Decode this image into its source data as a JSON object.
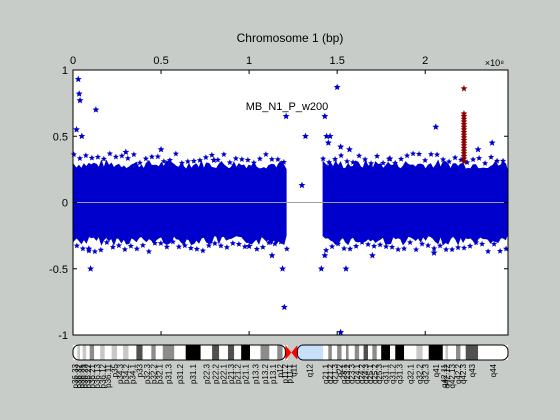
{
  "chart_data": {
    "type": "scatter",
    "title": "MB_N1_P_w200",
    "xlabel": "Chromosome 1 (bp)",
    "ylabel": "",
    "x_axis_multiplier": "×10⁸",
    "xlim": [
      0,
      2.47
    ],
    "ylim": [
      -1,
      1
    ],
    "x_ticks": [
      0,
      0.5,
      1,
      1.5,
      2
    ],
    "x_tick_labels": [
      "0",
      "0.5",
      "1",
      "1.5",
      "2"
    ],
    "y_ticks": [
      -1,
      -0.5,
      0,
      0.5,
      1
    ],
    "y_tick_labels": [
      "-1",
      "-0.5",
      "0",
      "0.5",
      "1"
    ],
    "baseline_y": 0,
    "grid": false,
    "legend": "none",
    "band": {
      "ymin": -0.25,
      "ymax": 0.25,
      "segments": [
        [
          0.005,
          1.21
        ],
        [
          1.42,
          2.465
        ]
      ]
    },
    "series": [
      {
        "color": "#0000cc",
        "points": [
          [
            0.03,
            0.93
          ],
          [
            0.035,
            0.82
          ],
          [
            0.04,
            0.77
          ],
          [
            0.02,
            0.55
          ],
          [
            0.05,
            0.5
          ],
          [
            0.13,
            0.7
          ],
          [
            0.1,
            -0.5
          ],
          [
            0.09,
            -0.35
          ],
          [
            0.3,
            0.38
          ],
          [
            0.5,
            0.4
          ],
          [
            1.21,
            0.65
          ],
          [
            1.2,
            -0.79
          ],
          [
            1.19,
            -0.5
          ],
          [
            1.13,
            -0.4
          ],
          [
            1.3,
            0.13
          ],
          [
            1.43,
            0.65
          ],
          [
            1.44,
            0.5
          ],
          [
            1.45,
            0.45
          ],
          [
            1.46,
            0.5
          ],
          [
            1.43,
            -0.4
          ],
          [
            1.41,
            -0.5
          ],
          [
            1.5,
            0.87
          ],
          [
            1.52,
            0.42
          ],
          [
            1.52,
            -0.98
          ],
          [
            1.55,
            -0.5
          ],
          [
            1.57,
            0.4
          ],
          [
            1.7,
            -0.4
          ],
          [
            2.06,
            0.57
          ],
          [
            2.05,
            -0.38
          ],
          [
            2.3,
            0.4
          ],
          [
            2.38,
            0.45
          ],
          [
            1.32,
            0.5
          ],
          [
            0.8,
            0.32
          ],
          [
            1.0,
            -0.33
          ],
          [
            1.8,
            0.33
          ]
        ]
      },
      {
        "color": "#8b0000",
        "points": [
          [
            2.22,
            0.86
          ],
          [
            2.22,
            0.67
          ],
          [
            2.22,
            0.65
          ],
          [
            2.22,
            0.63
          ],
          [
            2.22,
            0.61
          ],
          [
            2.22,
            0.59
          ],
          [
            2.22,
            0.57
          ],
          [
            2.22,
            0.55
          ],
          [
            2.22,
            0.53
          ],
          [
            2.22,
            0.51
          ],
          [
            2.22,
            0.49
          ],
          [
            2.22,
            0.47
          ],
          [
            2.22,
            0.45
          ],
          [
            2.22,
            0.43
          ],
          [
            2.22,
            0.41
          ],
          [
            2.22,
            0.39
          ],
          [
            2.22,
            0.37
          ],
          [
            2.22,
            0.35
          ],
          [
            2.22,
            0.33
          ],
          [
            2.22,
            0.31
          ]
        ]
      }
    ],
    "ideogram": {
      "centromere_x": 1.24,
      "heterochromatin": [
        1.25,
        1.42
      ],
      "bands": [
        {
          "name": "p36.33",
          "start": 0.0,
          "end": 0.025,
          "stain": "gneg"
        },
        {
          "name": "p36.32",
          "start": 0.025,
          "end": 0.04,
          "stain": "gpos25"
        },
        {
          "name": "p36.31",
          "start": 0.04,
          "end": 0.055,
          "stain": "gneg"
        },
        {
          "name": "p36.23",
          "start": 0.055,
          "end": 0.075,
          "stain": "gpos25"
        },
        {
          "name": "p36.22",
          "start": 0.075,
          "end": 0.095,
          "stain": "gneg"
        },
        {
          "name": "p36.21",
          "start": 0.095,
          "end": 0.12,
          "stain": "gpos50"
        },
        {
          "name": "p36.13",
          "start": 0.12,
          "end": 0.155,
          "stain": "gneg"
        },
        {
          "name": "p36.12",
          "start": 0.155,
          "end": 0.18,
          "stain": "gpos25"
        },
        {
          "name": "p36.11",
          "start": 0.18,
          "end": 0.22,
          "stain": "gneg"
        },
        {
          "name": "p35",
          "start": 0.22,
          "end": 0.25,
          "stain": "gpos25"
        },
        {
          "name": "p34.3",
          "start": 0.25,
          "end": 0.285,
          "stain": "gneg"
        },
        {
          "name": "p34.2",
          "start": 0.285,
          "end": 0.315,
          "stain": "gpos25"
        },
        {
          "name": "p34.1",
          "start": 0.315,
          "end": 0.36,
          "stain": "gneg"
        },
        {
          "name": "p33",
          "start": 0.36,
          "end": 0.395,
          "stain": "gpos75"
        },
        {
          "name": "p32.3",
          "start": 0.395,
          "end": 0.445,
          "stain": "gneg"
        },
        {
          "name": "p32.2",
          "start": 0.445,
          "end": 0.47,
          "stain": "gpos50"
        },
        {
          "name": "p32.1",
          "start": 0.47,
          "end": 0.51,
          "stain": "gneg"
        },
        {
          "name": "p31.3",
          "start": 0.51,
          "end": 0.575,
          "stain": "gpos50"
        },
        {
          "name": "p31.2",
          "start": 0.575,
          "end": 0.64,
          "stain": "gneg"
        },
        {
          "name": "p31.1",
          "start": 0.64,
          "end": 0.725,
          "stain": "gpos100"
        },
        {
          "name": "p22.3",
          "start": 0.725,
          "end": 0.79,
          "stain": "gneg"
        },
        {
          "name": "p22.2",
          "start": 0.79,
          "end": 0.83,
          "stain": "gpos75"
        },
        {
          "name": "p22.1",
          "start": 0.83,
          "end": 0.88,
          "stain": "gneg"
        },
        {
          "name": "p21.3",
          "start": 0.88,
          "end": 0.915,
          "stain": "gpos75"
        },
        {
          "name": "p21.2",
          "start": 0.915,
          "end": 0.955,
          "stain": "gneg"
        },
        {
          "name": "p21.1",
          "start": 0.955,
          "end": 1.005,
          "stain": "gpos100"
        },
        {
          "name": "p13.3",
          "start": 1.005,
          "end": 1.065,
          "stain": "gneg"
        },
        {
          "name": "p13.2",
          "start": 1.065,
          "end": 1.115,
          "stain": "gpos50"
        },
        {
          "name": "p13.1",
          "start": 1.115,
          "end": 1.16,
          "stain": "gneg"
        },
        {
          "name": "p12",
          "start": 1.16,
          "end": 1.19,
          "stain": "gpos50"
        },
        {
          "name": "p11.2",
          "start": 1.19,
          "end": 1.22,
          "stain": "gneg"
        },
        {
          "name": "p11.1",
          "start": 1.22,
          "end": 1.24,
          "stain": "acen"
        },
        {
          "name": "q11",
          "start": 1.24,
          "end": 1.265,
          "stain": "acen"
        },
        {
          "name": "q12",
          "start": 1.265,
          "end": 1.42,
          "stain": "gvar"
        },
        {
          "name": "q21.1",
          "start": 1.42,
          "end": 1.45,
          "stain": "gneg"
        },
        {
          "name": "q21.2",
          "start": 1.45,
          "end": 1.47,
          "stain": "gpos50"
        },
        {
          "name": "q21.3",
          "start": 1.47,
          "end": 1.5,
          "stain": "gneg"
        },
        {
          "name": "q22",
          "start": 1.5,
          "end": 1.525,
          "stain": "gpos50"
        },
        {
          "name": "q23.1",
          "start": 1.525,
          "end": 1.55,
          "stain": "gneg"
        },
        {
          "name": "q23.2",
          "start": 1.55,
          "end": 1.565,
          "stain": "gpos50"
        },
        {
          "name": "q23.3",
          "start": 1.565,
          "end": 1.6,
          "stain": "gneg"
        },
        {
          "name": "q24.1",
          "start": 1.6,
          "end": 1.625,
          "stain": "gpos50"
        },
        {
          "name": "q24.2",
          "start": 1.625,
          "end": 1.65,
          "stain": "gneg"
        },
        {
          "name": "q24.3",
          "start": 1.65,
          "end": 1.675,
          "stain": "gpos75"
        },
        {
          "name": "q25.1",
          "start": 1.675,
          "end": 1.7,
          "stain": "gneg"
        },
        {
          "name": "q25.2",
          "start": 1.7,
          "end": 1.725,
          "stain": "gpos50"
        },
        {
          "name": "q25.3",
          "start": 1.725,
          "end": 1.75,
          "stain": "gneg"
        },
        {
          "name": "q31.1",
          "start": 1.75,
          "end": 1.8,
          "stain": "gpos100"
        },
        {
          "name": "q31.2",
          "start": 1.8,
          "end": 1.83,
          "stain": "gneg"
        },
        {
          "name": "q31.3",
          "start": 1.83,
          "end": 1.88,
          "stain": "gpos100"
        },
        {
          "name": "q32.1",
          "start": 1.88,
          "end": 1.95,
          "stain": "gneg"
        },
        {
          "name": "q32.2",
          "start": 1.95,
          "end": 1.985,
          "stain": "gpos25"
        },
        {
          "name": "q32.3",
          "start": 1.985,
          "end": 2.02,
          "stain": "gneg"
        },
        {
          "name": "q41",
          "start": 2.02,
          "end": 2.1,
          "stain": "gpos100"
        },
        {
          "name": "q42.11",
          "start": 2.1,
          "end": 2.115,
          "stain": "gneg"
        },
        {
          "name": "q42.12",
          "start": 2.115,
          "end": 2.13,
          "stain": "gpos25"
        },
        {
          "name": "q42.13",
          "start": 2.13,
          "end": 2.175,
          "stain": "gneg"
        },
        {
          "name": "q42.2",
          "start": 2.175,
          "end": 2.2,
          "stain": "gpos50"
        },
        {
          "name": "q42.3",
          "start": 2.2,
          "end": 2.23,
          "stain": "gneg"
        },
        {
          "name": "q43",
          "start": 2.23,
          "end": 2.3,
          "stain": "gpos75"
        },
        {
          "name": "q44",
          "start": 2.3,
          "end": 2.47,
          "stain": "gneg"
        }
      ],
      "printed_labels": [
        {
          "text": "p36.33",
          "x": 0.012
        },
        {
          "text": "p36.32",
          "x": 0.032
        },
        {
          "text": "p36.31",
          "x": 0.047
        },
        {
          "text": "p36.23",
          "x": 0.065
        },
        {
          "text": "p36.22",
          "x": 0.085
        },
        {
          "text": "p36.21",
          "x": 0.107
        },
        {
          "text": "p36.13",
          "x": 0.137
        },
        {
          "text": "p36.12",
          "x": 0.167
        },
        {
          "text": "p36.11",
          "x": 0.2
        },
        {
          "text": "p35",
          "x": 0.235
        },
        {
          "text": "p34.3",
          "x": 0.267
        },
        {
          "text": "p34.2",
          "x": 0.3
        },
        {
          "text": "p34.1",
          "x": 0.337
        },
        {
          "text": "p33",
          "x": 0.377
        },
        {
          "text": "p32.3",
          "x": 0.42
        },
        {
          "text": "p32.2",
          "x": 0.457
        },
        {
          "text": "p32.1",
          "x": 0.49
        },
        {
          "text": "p31.3",
          "x": 0.542
        },
        {
          "text": "p31.2",
          "x": 0.607
        },
        {
          "text": "p31.1",
          "x": 0.682
        },
        {
          "text": "p22.3",
          "x": 0.757
        },
        {
          "text": "p22.2",
          "x": 0.81
        },
        {
          "text": "p22.1",
          "x": 0.855
        },
        {
          "text": "p21.3",
          "x": 0.897
        },
        {
          "text": "p21.2",
          "x": 0.935
        },
        {
          "text": "p21.1",
          "x": 0.98
        },
        {
          "text": "p13.3",
          "x": 1.035
        },
        {
          "text": "p13.2",
          "x": 1.09
        },
        {
          "text": "p13.1",
          "x": 1.137
        },
        {
          "text": "p12",
          "x": 1.175
        },
        {
          "text": "p11.2",
          "x": 1.205
        },
        {
          "text": "p11.1",
          "x": 1.23
        },
        {
          "text": "q11",
          "x": 1.252
        },
        {
          "text": "q12",
          "x": 1.342
        },
        {
          "text": "q21.1",
          "x": 1.435
        },
        {
          "text": "q21.2",
          "x": 1.46
        },
        {
          "text": "q21.3",
          "x": 1.485
        },
        {
          "text": "q22",
          "x": 1.512
        },
        {
          "text": "q23.1",
          "x": 1.537
        },
        {
          "text": "q23.2",
          "x": 1.557
        },
        {
          "text": "q23.3",
          "x": 1.582
        },
        {
          "text": "q24.1",
          "x": 1.612
        },
        {
          "text": "q24.2",
          "x": 1.637
        },
        {
          "text": "q24.3",
          "x": 1.662
        },
        {
          "text": "q25.1",
          "x": 1.687
        },
        {
          "text": "q25.2",
          "x": 1.712
        },
        {
          "text": "q25.3",
          "x": 1.737
        },
        {
          "text": "q31.1",
          "x": 1.775
        },
        {
          "text": "q31.2",
          "x": 1.815
        },
        {
          "text": "q31.3",
          "x": 1.855
        },
        {
          "text": "q32.1",
          "x": 1.915
        },
        {
          "text": "q32.2",
          "x": 1.967
        },
        {
          "text": "q32.3",
          "x": 2.002
        },
        {
          "text": "q41",
          "x": 2.06
        },
        {
          "text": "q42.11",
          "x": 2.107
        },
        {
          "text": "q42.12",
          "x": 2.122
        },
        {
          "text": "q42.13",
          "x": 2.152
        },
        {
          "text": "q42.2",
          "x": 2.187
        },
        {
          "text": "q42.3",
          "x": 2.215
        },
        {
          "text": "q43",
          "x": 2.265
        },
        {
          "text": "q44",
          "x": 2.385
        }
      ]
    }
  },
  "colors": {
    "background": "#c8ccc8",
    "plot_background": "#ffffff",
    "primary_points": "#0000cc",
    "highlight_points": "#8b0000",
    "baseline": "#a0a0a0",
    "centromere": "#ff0000",
    "heterochromatin": "#c8e1fa",
    "ideogram_gneg": "#ffffff",
    "ideogram_gpos25": "#c8c8c8",
    "ideogram_gpos50": "#8c8c8c",
    "ideogram_gpos75": "#505050",
    "ideogram_gpos100": "#000000"
  }
}
